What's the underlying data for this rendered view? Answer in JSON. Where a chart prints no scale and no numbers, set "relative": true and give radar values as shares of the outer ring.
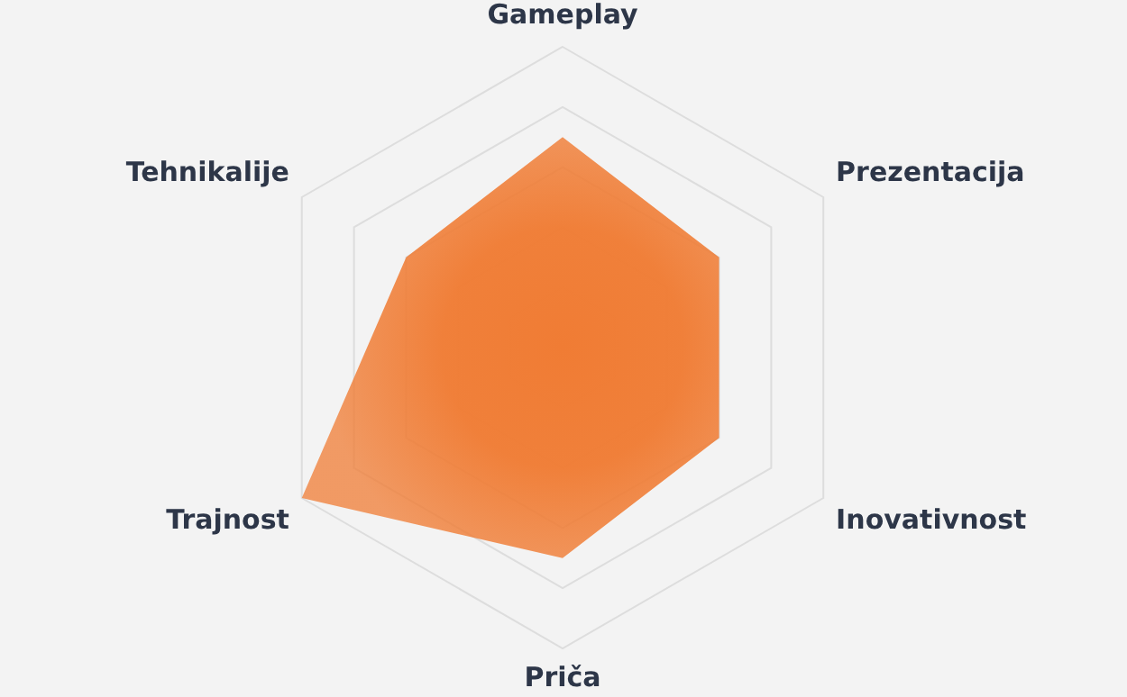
{
  "chart_data": {
    "type": "radar",
    "relative": true,
    "grid": true,
    "legend": false,
    "categories": [
      "Gameplay",
      "Prezentacija",
      "Inovativnost",
      "Priča",
      "Trajnost",
      "Tehnikalije"
    ],
    "series": [
      {
        "color": "#f07c34",
        "values": [
          0.7,
          0.6,
          0.6,
          0.7,
          1,
          0.6
        ]
      }
    ]
  }
}
